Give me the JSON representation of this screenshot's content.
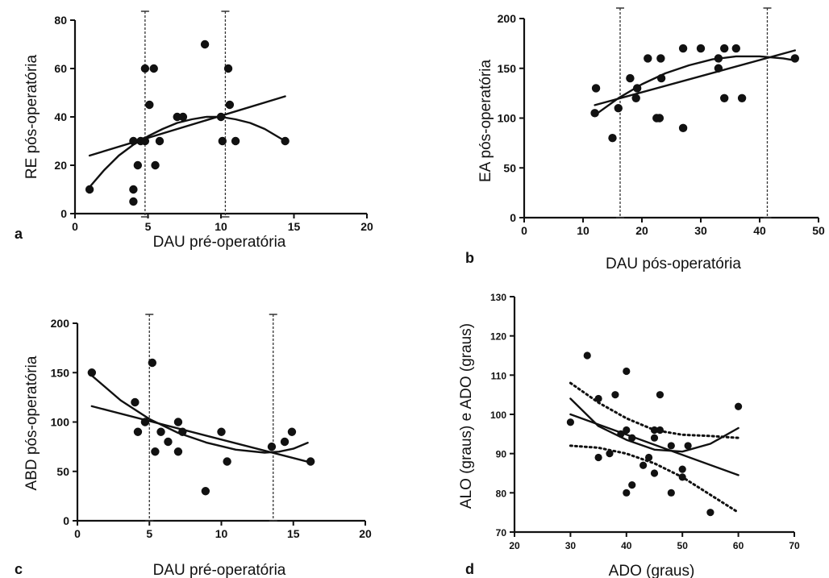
{
  "chart_data": [
    {
      "panel": "a",
      "type": "scatter",
      "xlabel": "DAU pré-operatória",
      "ylabel": "RE pós-operatória",
      "xlim": [
        0,
        20
      ],
      "ylim": [
        0,
        80
      ],
      "xticks": [
        0,
        5,
        10,
        15,
        20
      ],
      "yticks": [
        0,
        20,
        40,
        60,
        80
      ],
      "points": [
        [
          1,
          10
        ],
        [
          4,
          5
        ],
        [
          4,
          10
        ],
        [
          4,
          30
        ],
        [
          4.3,
          20
        ],
        [
          4.5,
          30
        ],
        [
          4.8,
          60
        ],
        [
          4.8,
          30
        ],
        [
          5.1,
          45
        ],
        [
          5.4,
          60
        ],
        [
          5.5,
          20
        ],
        [
          5.8,
          30
        ],
        [
          7,
          40
        ],
        [
          7.4,
          40
        ],
        [
          8.9,
          70
        ],
        [
          10,
          40
        ],
        [
          10.1,
          30
        ],
        [
          10.5,
          60
        ],
        [
          10.6,
          45
        ],
        [
          11,
          30
        ],
        [
          14.4,
          30
        ]
      ],
      "fits": [
        {
          "kind": "linear",
          "points": [
            [
              1,
              24
            ],
            [
              14.4,
              48.5
            ]
          ]
        },
        {
          "kind": "quadratic",
          "points": [
            [
              1,
              11
            ],
            [
              2,
              18
            ],
            [
              3,
              24
            ],
            [
              4,
              28.5
            ],
            [
              5,
              32
            ],
            [
              6,
              35
            ],
            [
              7,
              37.5
            ],
            [
              8,
              39
            ],
            [
              9,
              40
            ],
            [
              10,
              40
            ],
            [
              11,
              39
            ],
            [
              12,
              37.5
            ],
            [
              13,
              35
            ],
            [
              14.4,
              30
            ]
          ]
        }
      ],
      "reference_lines_x": [
        4.8,
        10.3
      ]
    },
    {
      "panel": "b",
      "type": "scatter",
      "xlabel": "DAU pós-operatória",
      "ylabel": "EA pós-operatória",
      "xlim": [
        0,
        50
      ],
      "ylim": [
        0,
        200
      ],
      "xticks": [
        0,
        10,
        20,
        30,
        40,
        50
      ],
      "yticks": [
        0,
        50,
        100,
        150,
        200
      ],
      "points": [
        [
          12,
          105
        ],
        [
          12.2,
          130
        ],
        [
          15,
          80
        ],
        [
          16,
          110
        ],
        [
          18,
          140
        ],
        [
          19,
          120
        ],
        [
          19.2,
          130
        ],
        [
          21,
          160
        ],
        [
          22.5,
          100
        ],
        [
          23,
          100
        ],
        [
          23.2,
          160
        ],
        [
          23.3,
          140
        ],
        [
          27,
          90
        ],
        [
          27,
          170
        ],
        [
          30,
          170
        ],
        [
          33,
          160
        ],
        [
          33,
          150
        ],
        [
          34,
          170
        ],
        [
          34,
          120
        ],
        [
          36,
          170
        ],
        [
          37,
          120
        ],
        [
          46,
          160
        ]
      ],
      "fits": [
        {
          "kind": "linear",
          "points": [
            [
              12,
              113
            ],
            [
              46,
              168
            ]
          ]
        },
        {
          "kind": "quadratic",
          "points": [
            [
              12,
              103
            ],
            [
              16,
              120
            ],
            [
              20,
              134
            ],
            [
              24,
              145
            ],
            [
              28,
              153
            ],
            [
              32,
              159
            ],
            [
              36,
              162
            ],
            [
              40,
              162
            ],
            [
              44,
              160
            ],
            [
              46,
              158
            ]
          ]
        }
      ],
      "reference_lines_x": [
        16.3,
        41.3
      ]
    },
    {
      "panel": "c",
      "type": "scatter",
      "xlabel": "DAU pré-operatória",
      "ylabel": "ABD pós-operatória",
      "xlim": [
        0,
        20
      ],
      "ylim": [
        0,
        200
      ],
      "xticks": [
        0,
        5,
        10,
        15,
        20
      ],
      "yticks": [
        0,
        50,
        100,
        150,
        200
      ],
      "points": [
        [
          1,
          150
        ],
        [
          4,
          120
        ],
        [
          4.2,
          90
        ],
        [
          4.7,
          100
        ],
        [
          5.2,
          160
        ],
        [
          5.4,
          70
        ],
        [
          5.8,
          90
        ],
        [
          6.3,
          80
        ],
        [
          7,
          100
        ],
        [
          7,
          70
        ],
        [
          7.3,
          90
        ],
        [
          8.9,
          30
        ],
        [
          10,
          90
        ],
        [
          10.4,
          60
        ],
        [
          13.5,
          75
        ],
        [
          14.4,
          80
        ],
        [
          14.9,
          90
        ],
        [
          16.2,
          60
        ]
      ],
      "fits": [
        {
          "kind": "linear",
          "points": [
            [
              1,
              116
            ],
            [
              16.2,
              59
            ]
          ]
        },
        {
          "kind": "quadratic",
          "points": [
            [
              1,
              147
            ],
            [
              3,
              122
            ],
            [
              5,
              103
            ],
            [
              7,
              89
            ],
            [
              9,
              79
            ],
            [
              11,
              72
            ],
            [
              13,
              69
            ],
            [
              14,
              70
            ],
            [
              15,
              73
            ],
            [
              16,
              79
            ]
          ]
        }
      ],
      "reference_lines_x": [
        5,
        13.6
      ]
    },
    {
      "panel": "d",
      "type": "scatter",
      "xlabel": "ADO (graus)",
      "ylabel": "ALO (graus) e ADO (graus)",
      "xlim": [
        20,
        70
      ],
      "ylim": [
        70,
        130
      ],
      "xticks": [
        20,
        30,
        40,
        50,
        60,
        70
      ],
      "yticks": [
        70,
        80,
        90,
        100,
        110,
        120,
        130
      ],
      "points": [
        [
          30,
          98
        ],
        [
          33,
          115
        ],
        [
          35,
          104
        ],
        [
          35,
          89
        ],
        [
          37,
          90
        ],
        [
          38,
          105
        ],
        [
          39,
          95
        ],
        [
          40,
          111
        ],
        [
          40,
          96
        ],
        [
          40,
          80
        ],
        [
          41,
          94
        ],
        [
          41,
          82
        ],
        [
          43,
          87
        ],
        [
          44,
          89
        ],
        [
          45,
          85
        ],
        [
          45,
          94
        ],
        [
          45,
          96
        ],
        [
          46,
          105
        ],
        [
          46,
          96
        ],
        [
          48,
          92
        ],
        [
          48,
          80
        ],
        [
          50,
          86
        ],
        [
          50,
          84
        ],
        [
          51,
          92
        ],
        [
          55,
          75
        ],
        [
          60,
          102
        ]
      ],
      "fits": [
        {
          "kind": "linear",
          "points": [
            [
              30,
              100
            ],
            [
              60,
              84.5
            ]
          ]
        },
        {
          "kind": "quadratic",
          "points": [
            [
              30,
              104
            ],
            [
              35,
              97
            ],
            [
              40,
              93.5
            ],
            [
              45,
              91
            ],
            [
              50,
              90.5
            ],
            [
              55,
              92.5
            ],
            [
              60,
              96.5
            ]
          ]
        },
        {
          "kind": "ci-upper",
          "points": [
            [
              30,
              108
            ],
            [
              35,
              103
            ],
            [
              40,
              99
            ],
            [
              45,
              96
            ],
            [
              50,
              94.8
            ],
            [
              55,
              94.5
            ],
            [
              60,
              94
            ]
          ]
        },
        {
          "kind": "ci-lower",
          "points": [
            [
              30,
              92
            ],
            [
              35,
              91.5
            ],
            [
              40,
              90
            ],
            [
              45,
              87.5
            ],
            [
              50,
              84
            ],
            [
              55,
              79.5
            ],
            [
              60,
              75
            ]
          ]
        }
      ]
    }
  ]
}
